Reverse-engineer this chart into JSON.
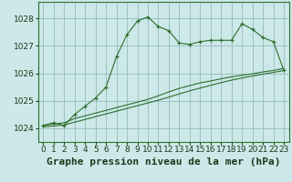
{
  "title": "Graphe pression niveau de la mer (hPa)",
  "background_color": "#cce8e8",
  "plot_background": "#cce8e8",
  "grid_color": "#99bbbb",
  "line_color": "#2d6e2d",
  "xlabel_color": "#1a3a1a",
  "xlim": [
    -0.5,
    23.5
  ],
  "ylim": [
    1023.5,
    1028.6
  ],
  "yticks": [
    1024,
    1025,
    1026,
    1027,
    1028
  ],
  "xticks": [
    0,
    1,
    2,
    3,
    4,
    5,
    6,
    7,
    8,
    9,
    10,
    11,
    12,
    13,
    14,
    15,
    16,
    17,
    18,
    19,
    20,
    21,
    22,
    23
  ],
  "series": [
    {
      "x": [
        0,
        1,
        2,
        3,
        4,
        5,
        6,
        7,
        8,
        9,
        10,
        11,
        12,
        13,
        14,
        15,
        16,
        17,
        18,
        19,
        20,
        21,
        22,
        23
      ],
      "y": [
        1024.1,
        1024.2,
        1024.1,
        1024.5,
        1024.8,
        1025.1,
        1025.5,
        1026.6,
        1027.4,
        1027.9,
        1028.05,
        1027.7,
        1027.55,
        1027.1,
        1027.05,
        1027.15,
        1027.2,
        1027.2,
        1027.2,
        1027.8,
        1027.6,
        1027.3,
        1027.15,
        1026.1
      ],
      "has_marker": true
    },
    {
      "x": [
        0,
        1,
        2,
        3,
        4,
        5,
        6,
        7,
        8,
        9,
        10,
        11,
        12,
        13,
        14,
        15,
        16,
        17,
        18,
        19,
        20,
        21,
        22,
        23
      ],
      "y": [
        1024.1,
        1024.15,
        1024.2,
        1024.35,
        1024.45,
        1024.55,
        1024.65,
        1024.75,
        1024.85,
        1024.95,
        1025.05,
        1025.18,
        1025.32,
        1025.45,
        1025.55,
        1025.65,
        1025.72,
        1025.8,
        1025.87,
        1025.93,
        1025.98,
        1026.05,
        1026.1,
        1026.18
      ],
      "has_marker": false
    },
    {
      "x": [
        0,
        1,
        2,
        3,
        4,
        5,
        6,
        7,
        8,
        9,
        10,
        11,
        12,
        13,
        14,
        15,
        16,
        17,
        18,
        19,
        20,
        21,
        22,
        23
      ],
      "y": [
        1024.05,
        1024.08,
        1024.12,
        1024.22,
        1024.32,
        1024.42,
        1024.52,
        1024.62,
        1024.72,
        1024.82,
        1024.92,
        1025.02,
        1025.13,
        1025.25,
        1025.36,
        1025.46,
        1025.56,
        1025.66,
        1025.75,
        1025.83,
        1025.9,
        1025.97,
        1026.03,
        1026.1
      ],
      "has_marker": false
    }
  ],
  "title_fontsize": 8,
  "tick_fontsize": 6.5
}
